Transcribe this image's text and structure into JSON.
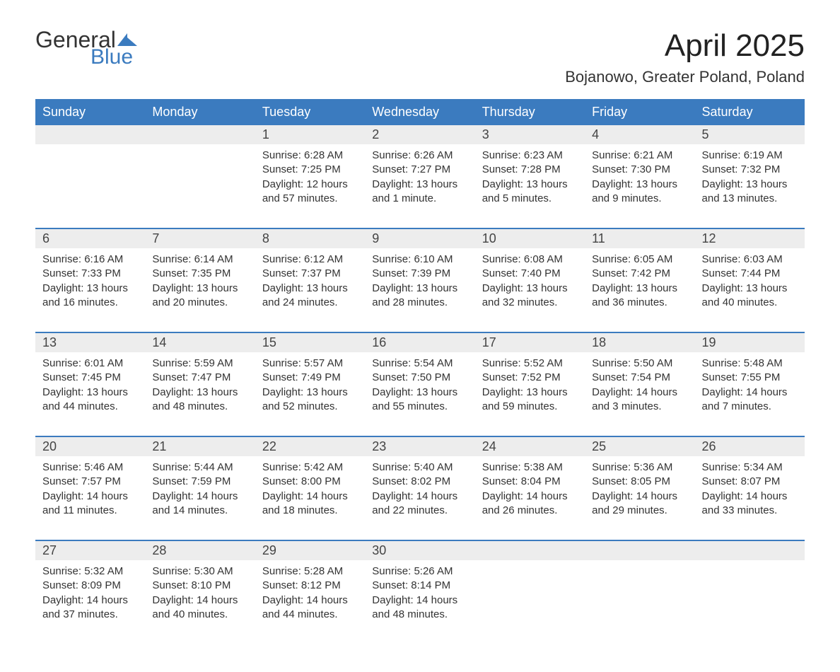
{
  "brand": {
    "text_general": "General",
    "text_blue": "Blue",
    "flag_color": "#3b7bbf",
    "text_color_dark": "#333333"
  },
  "header": {
    "month_title": "April 2025",
    "location": "Bojanowo, Greater Poland, Poland"
  },
  "colors": {
    "header_bg": "#3b7bbf",
    "header_text": "#ffffff",
    "daynum_bg": "#ededed",
    "border": "#3b7bbf",
    "body_text": "#333333",
    "page_bg": "#ffffff"
  },
  "day_names": [
    "Sunday",
    "Monday",
    "Tuesday",
    "Wednesday",
    "Thursday",
    "Friday",
    "Saturday"
  ],
  "weeks": [
    [
      {
        "day": "",
        "sunrise": "",
        "sunset": "",
        "daylight1": "",
        "daylight2": ""
      },
      {
        "day": "",
        "sunrise": "",
        "sunset": "",
        "daylight1": "",
        "daylight2": ""
      },
      {
        "day": "1",
        "sunrise": "Sunrise: 6:28 AM",
        "sunset": "Sunset: 7:25 PM",
        "daylight1": "Daylight: 12 hours",
        "daylight2": "and 57 minutes."
      },
      {
        "day": "2",
        "sunrise": "Sunrise: 6:26 AM",
        "sunset": "Sunset: 7:27 PM",
        "daylight1": "Daylight: 13 hours",
        "daylight2": "and 1 minute."
      },
      {
        "day": "3",
        "sunrise": "Sunrise: 6:23 AM",
        "sunset": "Sunset: 7:28 PM",
        "daylight1": "Daylight: 13 hours",
        "daylight2": "and 5 minutes."
      },
      {
        "day": "4",
        "sunrise": "Sunrise: 6:21 AM",
        "sunset": "Sunset: 7:30 PM",
        "daylight1": "Daylight: 13 hours",
        "daylight2": "and 9 minutes."
      },
      {
        "day": "5",
        "sunrise": "Sunrise: 6:19 AM",
        "sunset": "Sunset: 7:32 PM",
        "daylight1": "Daylight: 13 hours",
        "daylight2": "and 13 minutes."
      }
    ],
    [
      {
        "day": "6",
        "sunrise": "Sunrise: 6:16 AM",
        "sunset": "Sunset: 7:33 PM",
        "daylight1": "Daylight: 13 hours",
        "daylight2": "and 16 minutes."
      },
      {
        "day": "7",
        "sunrise": "Sunrise: 6:14 AM",
        "sunset": "Sunset: 7:35 PM",
        "daylight1": "Daylight: 13 hours",
        "daylight2": "and 20 minutes."
      },
      {
        "day": "8",
        "sunrise": "Sunrise: 6:12 AM",
        "sunset": "Sunset: 7:37 PM",
        "daylight1": "Daylight: 13 hours",
        "daylight2": "and 24 minutes."
      },
      {
        "day": "9",
        "sunrise": "Sunrise: 6:10 AM",
        "sunset": "Sunset: 7:39 PM",
        "daylight1": "Daylight: 13 hours",
        "daylight2": "and 28 minutes."
      },
      {
        "day": "10",
        "sunrise": "Sunrise: 6:08 AM",
        "sunset": "Sunset: 7:40 PM",
        "daylight1": "Daylight: 13 hours",
        "daylight2": "and 32 minutes."
      },
      {
        "day": "11",
        "sunrise": "Sunrise: 6:05 AM",
        "sunset": "Sunset: 7:42 PM",
        "daylight1": "Daylight: 13 hours",
        "daylight2": "and 36 minutes."
      },
      {
        "day": "12",
        "sunrise": "Sunrise: 6:03 AM",
        "sunset": "Sunset: 7:44 PM",
        "daylight1": "Daylight: 13 hours",
        "daylight2": "and 40 minutes."
      }
    ],
    [
      {
        "day": "13",
        "sunrise": "Sunrise: 6:01 AM",
        "sunset": "Sunset: 7:45 PM",
        "daylight1": "Daylight: 13 hours",
        "daylight2": "and 44 minutes."
      },
      {
        "day": "14",
        "sunrise": "Sunrise: 5:59 AM",
        "sunset": "Sunset: 7:47 PM",
        "daylight1": "Daylight: 13 hours",
        "daylight2": "and 48 minutes."
      },
      {
        "day": "15",
        "sunrise": "Sunrise: 5:57 AM",
        "sunset": "Sunset: 7:49 PM",
        "daylight1": "Daylight: 13 hours",
        "daylight2": "and 52 minutes."
      },
      {
        "day": "16",
        "sunrise": "Sunrise: 5:54 AM",
        "sunset": "Sunset: 7:50 PM",
        "daylight1": "Daylight: 13 hours",
        "daylight2": "and 55 minutes."
      },
      {
        "day": "17",
        "sunrise": "Sunrise: 5:52 AM",
        "sunset": "Sunset: 7:52 PM",
        "daylight1": "Daylight: 13 hours",
        "daylight2": "and 59 minutes."
      },
      {
        "day": "18",
        "sunrise": "Sunrise: 5:50 AM",
        "sunset": "Sunset: 7:54 PM",
        "daylight1": "Daylight: 14 hours",
        "daylight2": "and 3 minutes."
      },
      {
        "day": "19",
        "sunrise": "Sunrise: 5:48 AM",
        "sunset": "Sunset: 7:55 PM",
        "daylight1": "Daylight: 14 hours",
        "daylight2": "and 7 minutes."
      }
    ],
    [
      {
        "day": "20",
        "sunrise": "Sunrise: 5:46 AM",
        "sunset": "Sunset: 7:57 PM",
        "daylight1": "Daylight: 14 hours",
        "daylight2": "and 11 minutes."
      },
      {
        "day": "21",
        "sunrise": "Sunrise: 5:44 AM",
        "sunset": "Sunset: 7:59 PM",
        "daylight1": "Daylight: 14 hours",
        "daylight2": "and 14 minutes."
      },
      {
        "day": "22",
        "sunrise": "Sunrise: 5:42 AM",
        "sunset": "Sunset: 8:00 PM",
        "daylight1": "Daylight: 14 hours",
        "daylight2": "and 18 minutes."
      },
      {
        "day": "23",
        "sunrise": "Sunrise: 5:40 AM",
        "sunset": "Sunset: 8:02 PM",
        "daylight1": "Daylight: 14 hours",
        "daylight2": "and 22 minutes."
      },
      {
        "day": "24",
        "sunrise": "Sunrise: 5:38 AM",
        "sunset": "Sunset: 8:04 PM",
        "daylight1": "Daylight: 14 hours",
        "daylight2": "and 26 minutes."
      },
      {
        "day": "25",
        "sunrise": "Sunrise: 5:36 AM",
        "sunset": "Sunset: 8:05 PM",
        "daylight1": "Daylight: 14 hours",
        "daylight2": "and 29 minutes."
      },
      {
        "day": "26",
        "sunrise": "Sunrise: 5:34 AM",
        "sunset": "Sunset: 8:07 PM",
        "daylight1": "Daylight: 14 hours",
        "daylight2": "and 33 minutes."
      }
    ],
    [
      {
        "day": "27",
        "sunrise": "Sunrise: 5:32 AM",
        "sunset": "Sunset: 8:09 PM",
        "daylight1": "Daylight: 14 hours",
        "daylight2": "and 37 minutes."
      },
      {
        "day": "28",
        "sunrise": "Sunrise: 5:30 AM",
        "sunset": "Sunset: 8:10 PM",
        "daylight1": "Daylight: 14 hours",
        "daylight2": "and 40 minutes."
      },
      {
        "day": "29",
        "sunrise": "Sunrise: 5:28 AM",
        "sunset": "Sunset: 8:12 PM",
        "daylight1": "Daylight: 14 hours",
        "daylight2": "and 44 minutes."
      },
      {
        "day": "30",
        "sunrise": "Sunrise: 5:26 AM",
        "sunset": "Sunset: 8:14 PM",
        "daylight1": "Daylight: 14 hours",
        "daylight2": "and 48 minutes."
      },
      {
        "day": "",
        "sunrise": "",
        "sunset": "",
        "daylight1": "",
        "daylight2": ""
      },
      {
        "day": "",
        "sunrise": "",
        "sunset": "",
        "daylight1": "",
        "daylight2": ""
      },
      {
        "day": "",
        "sunrise": "",
        "sunset": "",
        "daylight1": "",
        "daylight2": ""
      }
    ]
  ]
}
